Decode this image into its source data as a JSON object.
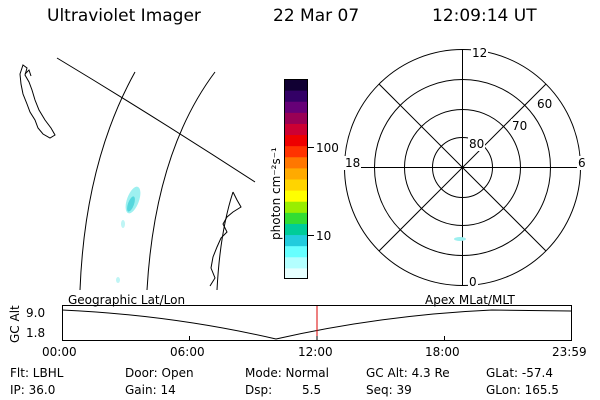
{
  "header": {
    "instrument": "Ultraviolet Imager",
    "date": "22 Mar 07",
    "time": "12:09:14 UT"
  },
  "colorbar": {
    "ticks": [
      "100",
      "10"
    ],
    "label": "photon cm⁻²s⁻¹",
    "colors": [
      "#e6ffff",
      "#b3ffff",
      "#66ffff",
      "#22ccdd",
      "#00cc99",
      "#33dd33",
      "#99ee00",
      "#ffff00",
      "#ffd400",
      "#ffaa00",
      "#ff7700",
      "#ff3300",
      "#ee0000",
      "#cc0033",
      "#990055",
      "#660077",
      "#330066",
      "#110033"
    ]
  },
  "polar": {
    "lat_labels": [
      "80",
      "70",
      "60"
    ],
    "mlt_labels": {
      "top": "12",
      "bottom": "0",
      "left": "18",
      "right": "6"
    }
  },
  "altitude_plot": {
    "axis_title": "GC Alt",
    "y_ticks": [
      "9.0",
      "1.8"
    ],
    "left_label": "Geographic Lat/Lon",
    "right_label": "Apex MLat/MLT",
    "x_ticks": [
      "00:00",
      "06:00",
      "12:00",
      "18:00",
      "23:59"
    ],
    "current_time_marker": "12:09",
    "current_marker_color": "#dd0000"
  },
  "status": {
    "flt": "Flt: LBHL",
    "ip": "IP: 36.0",
    "door": "Door: Open",
    "gain": "Gain: 14",
    "mode": "Mode: Normal",
    "dsp_label": "Dsp:",
    "dsp_value": "5.5",
    "gc_alt": "GC Alt: 4.3 Re",
    "seq": "Seq: 39",
    "glat": "GLat: -57.4",
    "glon": "GLon: 165.5"
  }
}
